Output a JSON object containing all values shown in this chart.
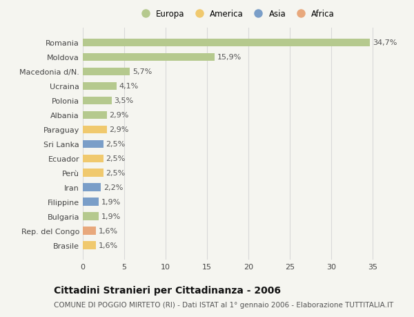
{
  "countries": [
    "Romania",
    "Moldova",
    "Macedonia d/N.",
    "Ucraina",
    "Polonia",
    "Albania",
    "Paraguay",
    "Sri Lanka",
    "Ecuador",
    "Perù",
    "Iran",
    "Filippine",
    "Bulgaria",
    "Rep. del Congo",
    "Brasile"
  ],
  "values": [
    34.7,
    15.9,
    5.7,
    4.1,
    3.5,
    2.9,
    2.9,
    2.5,
    2.5,
    2.5,
    2.2,
    1.9,
    1.9,
    1.6,
    1.6
  ],
  "labels": [
    "34,7%",
    "15,9%",
    "5,7%",
    "4,1%",
    "3,5%",
    "2,9%",
    "2,9%",
    "2,5%",
    "2,5%",
    "2,5%",
    "2,2%",
    "1,9%",
    "1,9%",
    "1,6%",
    "1,6%"
  ],
  "continents": [
    "Europa",
    "Europa",
    "Europa",
    "Europa",
    "Europa",
    "Europa",
    "America",
    "Asia",
    "America",
    "America",
    "Asia",
    "Asia",
    "Europa",
    "Africa",
    "America"
  ],
  "continent_colors": {
    "Europa": "#b5c98e",
    "America": "#f0c96e",
    "Asia": "#7a9ec8",
    "Africa": "#e8a87c"
  },
  "legend_order": [
    "Europa",
    "America",
    "Asia",
    "Africa"
  ],
  "xlim": [
    0,
    37
  ],
  "xticks": [
    0,
    5,
    10,
    15,
    20,
    25,
    30,
    35
  ],
  "title": "Cittadini Stranieri per Cittadinanza - 2006",
  "subtitle": "COMUNE DI POGGIO MIRTETO (RI) - Dati ISTAT al 1° gennaio 2006 - Elaborazione TUTTITALIA.IT",
  "background_color": "#f5f5f0",
  "bar_height": 0.55,
  "label_fontsize": 8,
  "ytick_fontsize": 8,
  "xtick_fontsize": 8,
  "title_fontsize": 10,
  "subtitle_fontsize": 7.5
}
